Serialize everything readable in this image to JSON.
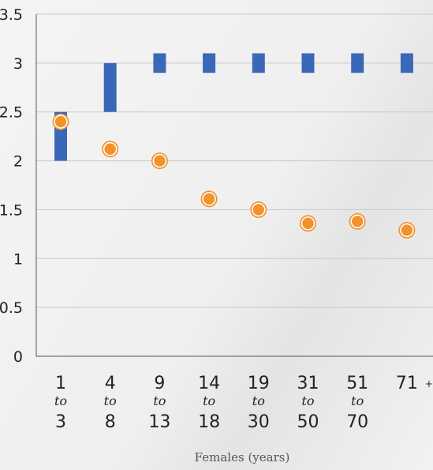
{
  "chart_data": {
    "type": "scatter",
    "ylim": [
      0,
      3.5
    ],
    "yticks": [
      "0",
      "0.5",
      "1",
      "1.5",
      "2",
      "2.5",
      "3",
      "3.5"
    ],
    "grid": true,
    "legend": "none",
    "xlabel": "Females (years)",
    "categories": [
      {
        "top": "1",
        "mid": "to",
        "bottom": "3"
      },
      {
        "top": "4",
        "mid": "to",
        "bottom": "8"
      },
      {
        "top": "9",
        "mid": "to",
        "bottom": "13"
      },
      {
        "top": "14",
        "mid": "to",
        "bottom": "18"
      },
      {
        "top": "19",
        "mid": "to",
        "bottom": "30"
      },
      {
        "top": "31",
        "mid": "to",
        "bottom": "50"
      },
      {
        "top": "51",
        "mid": "to",
        "bottom": "70"
      },
      {
        "top": "71",
        "suffix": "+"
      }
    ],
    "ranges": [
      {
        "low": 2.0,
        "high": 2.5
      },
      {
        "low": 2.5,
        "high": 3.0
      },
      {
        "low": 2.9,
        "high": 3.1
      },
      {
        "low": 2.9,
        "high": 3.1
      },
      {
        "low": 2.9,
        "high": 3.1
      },
      {
        "low": 2.9,
        "high": 3.1
      },
      {
        "low": 2.9,
        "high": 3.1
      },
      {
        "low": 2.9,
        "high": 3.1
      }
    ],
    "points": [
      2.4,
      2.12,
      2.0,
      1.61,
      1.5,
      1.36,
      1.38,
      1.29
    ],
    "colors": {
      "range": "#3a68b8",
      "point": "#f0932b",
      "grid": "#c9c9c9",
      "axis": "#555555"
    }
  }
}
